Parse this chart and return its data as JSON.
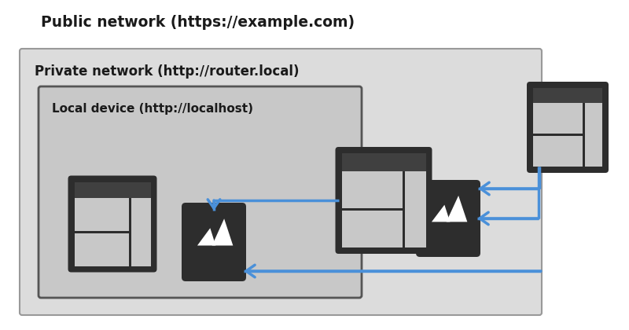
{
  "title": "Public network (https://example.com)",
  "private_label": "Private network (http://router.local)",
  "local_label": "Local device (http://localhost)",
  "bg_color": "#ffffff",
  "private_box_color": "#dcdcdc",
  "local_box_color": "#c8c8c8",
  "arrow_color": "#4a90d9",
  "icon_dark": "#2d2d2d",
  "icon_lighter": "#c8c8c8"
}
